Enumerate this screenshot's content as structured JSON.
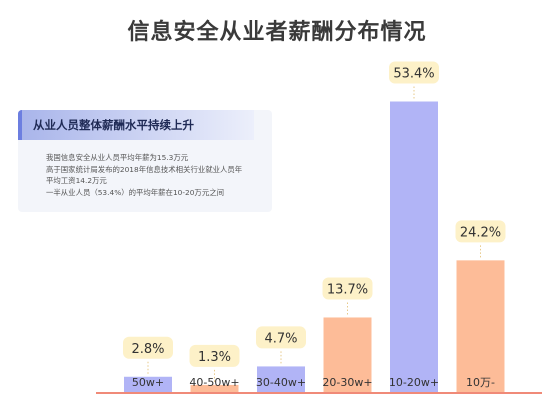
{
  "title": "信息安全从业者薪酬分布情况",
  "info_box": {
    "heading": "从业人员整体薪酬水平持续上升",
    "lines": [
      "我国信息安全从业人员平均年薪为15.3万元",
      "高于国家统计局发布的2018年信息技术相关行业就业人员年",
      "平均工资14.2万元",
      "一半从业人员（53.4%）的平均年薪在10-20万元之间"
    ]
  },
  "colors": {
    "blue_bar": "#b1b4f6",
    "orange_bar": "#fdbc98",
    "label_bubble": "#fdf1c8",
    "baseline": "#f08a78"
  },
  "chart_data": {
    "type": "bar",
    "categories": [
      "50w+",
      "40-50w+",
      "30-40w+",
      "20-30w+",
      "10-20w+",
      "10万-"
    ],
    "values": [
      2.8,
      1.3,
      4.7,
      13.7,
      53.4,
      24.2
    ],
    "value_labels": [
      "2.8%",
      "1.3%",
      "4.7%",
      "13.7%",
      "53.4%",
      "24.2%"
    ],
    "bar_colors": [
      "blue",
      "orange",
      "blue",
      "orange",
      "blue",
      "orange"
    ],
    "ylim": [
      0,
      60
    ],
    "xlabel": "",
    "ylabel": "",
    "grid": false,
    "legend": "none"
  }
}
